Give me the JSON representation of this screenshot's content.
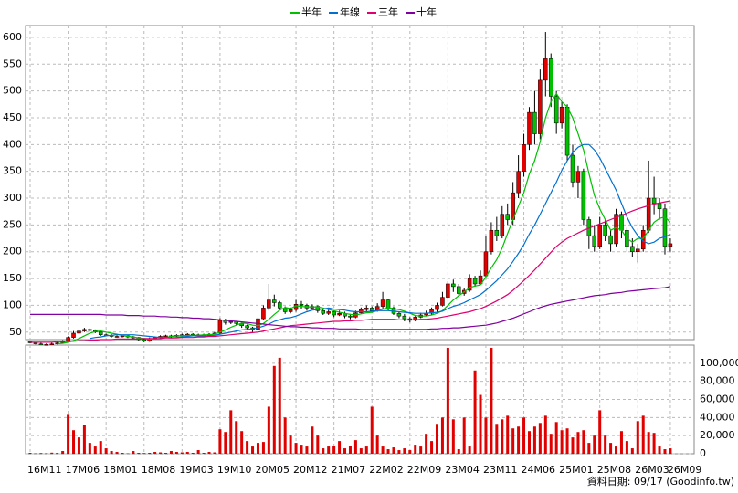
{
  "chart_data": {
    "type": "candlestick",
    "footer": "資料日期: 09/17 (Goodinfo.tw)",
    "categories": [
      "16M11",
      null,
      null,
      null,
      null,
      null,
      null,
      "17M06",
      null,
      null,
      null,
      null,
      null,
      null,
      "18M01",
      null,
      null,
      null,
      null,
      null,
      null,
      "18M08",
      null,
      null,
      null,
      null,
      null,
      null,
      "19M03",
      null,
      null,
      null,
      null,
      null,
      null,
      "19M10",
      null,
      null,
      null,
      null,
      null,
      null,
      "20M05",
      null,
      null,
      null,
      null,
      null,
      null,
      "20M12",
      null,
      null,
      null,
      null,
      null,
      null,
      "21M07",
      null,
      null,
      null,
      null,
      null,
      null,
      "22M02",
      null,
      null,
      null,
      null,
      null,
      null,
      "22M09",
      null,
      null,
      null,
      null,
      null,
      null,
      "23M04",
      null,
      null,
      null,
      null,
      null,
      null,
      "23M11",
      null,
      null,
      null,
      null,
      null,
      null,
      "24M06",
      null,
      null,
      null,
      null,
      null,
      null,
      "25M01",
      null,
      null,
      null,
      null,
      null,
      null,
      "25M08",
      null,
      null,
      null,
      null,
      null,
      null,
      "26M03",
      null,
      null,
      null,
      null,
      null,
      "26M09"
    ],
    "open": [
      32,
      30,
      28,
      27,
      27,
      28,
      30,
      33,
      40,
      48,
      52,
      55,
      53,
      50,
      45,
      44,
      42,
      42,
      43,
      41,
      40,
      36,
      34,
      38,
      40,
      42,
      43,
      42,
      44,
      45,
      46,
      44,
      45,
      44,
      46,
      48,
      72,
      68,
      70,
      66,
      62,
      58,
      55,
      75,
      95,
      110,
      105,
      95,
      88,
      92,
      102,
      100,
      95,
      98,
      90,
      85,
      88,
      82,
      85,
      80,
      78,
      86,
      92,
      95,
      90,
      98,
      110,
      95,
      85,
      80,
      75,
      72,
      78,
      82,
      85,
      92,
      100,
      115,
      140,
      135,
      122,
      128,
      150,
      140,
      155,
      200,
      240,
      230,
      270,
      260,
      310,
      350,
      400,
      460,
      420,
      520,
      560,
      490,
      440,
      470,
      380,
      330,
      350,
      260,
      230,
      210,
      250,
      230,
      215,
      270,
      240,
      210,
      200,
      205,
      240,
      300,
      290,
      280,
      210
    ],
    "high": [
      33,
      31,
      30,
      29,
      30,
      32,
      35,
      42,
      52,
      56,
      58,
      57,
      55,
      52,
      47,
      46,
      44,
      45,
      44,
      43,
      41,
      38,
      40,
      42,
      44,
      45,
      45,
      46,
      47,
      48,
      48,
      47,
      47,
      48,
      50,
      76,
      75,
      72,
      71,
      68,
      64,
      60,
      78,
      100,
      140,
      120,
      108,
      98,
      96,
      110,
      108,
      103,
      102,
      100,
      94,
      92,
      90,
      90,
      88,
      84,
      90,
      96,
      100,
      98,
      104,
      125,
      112,
      98,
      88,
      84,
      78,
      82,
      86,
      90,
      96,
      105,
      125,
      145,
      148,
      140,
      132,
      158,
      155,
      165,
      230,
      255,
      265,
      285,
      290,
      330,
      380,
      420,
      470,
      500,
      540,
      610,
      570,
      500,
      480,
      475,
      400,
      360,
      355,
      265,
      250,
      265,
      260,
      240,
      280,
      275,
      245,
      225,
      215,
      250,
      370,
      340,
      300,
      290,
      225
    ],
    "low": [
      29,
      27,
      26,
      25,
      26,
      27,
      29,
      32,
      38,
      46,
      50,
      50,
      48,
      43,
      42,
      40,
      40,
      40,
      39,
      37,
      33,
      31,
      32,
      36,
      38,
      40,
      40,
      41,
      42,
      43,
      42,
      42,
      42,
      43,
      45,
      46,
      64,
      65,
      63,
      58,
      55,
      50,
      48,
      72,
      90,
      98,
      90,
      84,
      85,
      88,
      94,
      90,
      92,
      86,
      82,
      82,
      78,
      80,
      76,
      74,
      76,
      84,
      88,
      86,
      88,
      94,
      90,
      82,
      76,
      70,
      68,
      70,
      76,
      80,
      82,
      88,
      98,
      112,
      125,
      118,
      118,
      125,
      135,
      138,
      150,
      195,
      220,
      225,
      250,
      250,
      300,
      340,
      390,
      400,
      410,
      490,
      470,
      420,
      430,
      370,
      320,
      300,
      250,
      205,
      200,
      205,
      220,
      200,
      210,
      225,
      200,
      190,
      180,
      200,
      235,
      270,
      260,
      195,
      200
    ],
    "close": [
      30,
      28,
      27,
      27,
      28,
      30,
      33,
      40,
      48,
      52,
      55,
      53,
      50,
      45,
      44,
      42,
      42,
      43,
      41,
      40,
      36,
      34,
      38,
      40,
      42,
      43,
      42,
      44,
      45,
      46,
      44,
      45,
      44,
      46,
      48,
      72,
      68,
      70,
      66,
      62,
      58,
      55,
      75,
      95,
      110,
      105,
      95,
      88,
      92,
      102,
      100,
      95,
      98,
      90,
      85,
      88,
      82,
      85,
      80,
      78,
      86,
      92,
      95,
      90,
      98,
      110,
      95,
      85,
      80,
      75,
      72,
      78,
      82,
      85,
      92,
      100,
      115,
      140,
      135,
      122,
      128,
      150,
      140,
      155,
      200,
      240,
      230,
      270,
      260,
      310,
      350,
      400,
      460,
      420,
      520,
      560,
      490,
      440,
      470,
      380,
      330,
      350,
      260,
      230,
      210,
      250,
      230,
      215,
      270,
      240,
      210,
      200,
      205,
      240,
      300,
      290,
      280,
      210,
      215
    ],
    "up_color": "#e00000",
    "down_color": "#00c000",
    "volume": [
      1000,
      500,
      800,
      600,
      1200,
      900,
      3000,
      43000,
      26000,
      18000,
      32000,
      12000,
      8000,
      14000,
      6000,
      3000,
      2000,
      1000,
      500,
      3000,
      1000,
      800,
      1000,
      2000,
      1500,
      1000,
      3000,
      2000,
      1500,
      2000,
      1000,
      4000,
      1000,
      2000,
      1500,
      27000,
      24000,
      48000,
      36000,
      25000,
      14000,
      8000,
      12000,
      13000,
      52000,
      97000,
      106000,
      40000,
      20000,
      12000,
      10000,
      8000,
      30000,
      20000,
      6000,
      8000,
      9000,
      14000,
      6000,
      9000,
      15000,
      6000,
      8000,
      52000,
      20000,
      8000,
      5000,
      7000,
      4000,
      6000,
      4000,
      10000,
      8000,
      22000,
      14000,
      33000,
      40000,
      117000,
      38000,
      5000,
      40000,
      8000,
      92000,
      65000,
      40000,
      117000,
      33000,
      38000,
      42000,
      28000,
      30000,
      40000,
      25000,
      30000,
      34000,
      42000,
      22000,
      35000,
      26000,
      28000,
      18000,
      24000,
      26000,
      12000,
      20000,
      48000,
      20000,
      12000,
      8000,
      25000,
      14000,
      6000,
      36000,
      42000,
      24000,
      23000,
      8000,
      5000,
      6000
    ],
    "volume_color": "#e00000",
    "series": [
      {
        "name": "半年",
        "color": "#00c000",
        "values": [
          null,
          null,
          null,
          null,
          null,
          28.5,
          29,
          31,
          34,
          38,
          43,
          48,
          51,
          52,
          50,
          48,
          46,
          44,
          42,
          41,
          39,
          38,
          37,
          37,
          38,
          40,
          42,
          43,
          43,
          44,
          44,
          44,
          45,
          45,
          46,
          50,
          54,
          59,
          63,
          67,
          66,
          63,
          62,
          66,
          74,
          83,
          91,
          96,
          94,
          99,
          98,
          97,
          97,
          97,
          95,
          92,
          90,
          87,
          85,
          83,
          82,
          84,
          86,
          87,
          90,
          93,
          95,
          94,
          92,
          89,
          85,
          81,
          80,
          80,
          82,
          85,
          90,
          100,
          110,
          118,
          125,
          133,
          136,
          138,
          153,
          170,
          185,
          207,
          234,
          260,
          285,
          310,
          345,
          370,
          405,
          450,
          480,
          495,
          480,
          470,
          450,
          420,
          390,
          346,
          305,
          280,
          260,
          240,
          245,
          240,
          225,
          218,
          225,
          225,
          240,
          255,
          262,
          265,
          255
        ]
      },
      {
        "name": "年線",
        "color": "#0070d0",
        "values": [
          null,
          null,
          null,
          null,
          null,
          null,
          null,
          null,
          null,
          null,
          null,
          38,
          40,
          41,
          43,
          44,
          45,
          45,
          45,
          45,
          44,
          43,
          42,
          41,
          40,
          40,
          39,
          40,
          41,
          42,
          43,
          43,
          43,
          43,
          44,
          46,
          48,
          50,
          52,
          54,
          55,
          56,
          58,
          61,
          65,
          70,
          73,
          76,
          77,
          80,
          84,
          88,
          91,
          92,
          93,
          95,
          93,
          92,
          91,
          89,
          88,
          88,
          88,
          89,
          90,
          90,
          90,
          89,
          88,
          87,
          86,
          85,
          85,
          85,
          86,
          87,
          89,
          94,
          98,
          101,
          105,
          110,
          115,
          120,
          128,
          137,
          146,
          157,
          168,
          182,
          197,
          213,
          233,
          250,
          270,
          290,
          310,
          330,
          352,
          370,
          385,
          395,
          400,
          400,
          390,
          375,
          355,
          335,
          315,
          290,
          265,
          245,
          230,
          220,
          215,
          218,
          225,
          228,
          232
        ]
      },
      {
        "name": "三年",
        "color": "#e0006f",
        "values": [
          31,
          31,
          31,
          31,
          31,
          32,
          32,
          33,
          33,
          34,
          34,
          35,
          35,
          36,
          36,
          36,
          37,
          37,
          37,
          37,
          37,
          38,
          38,
          38,
          38,
          39,
          39,
          39,
          40,
          40,
          40,
          41,
          41,
          42,
          42,
          43,
          44,
          45,
          46,
          47,
          48,
          49,
          50,
          52,
          54,
          56,
          58,
          60,
          62,
          63,
          64,
          65,
          66,
          67,
          68,
          69,
          70,
          70,
          71,
          71,
          72,
          72,
          73,
          74,
          74,
          74,
          74,
          74,
          73,
          73,
          73,
          73,
          74,
          74,
          75,
          76,
          78,
          80,
          82,
          84,
          86,
          88,
          91,
          94,
          98,
          103,
          108,
          114,
          120,
          128,
          137,
          146,
          156,
          166,
          177,
          188,
          199,
          210,
          218,
          225,
          230,
          235,
          240,
          244,
          248,
          252,
          256,
          260,
          264,
          268,
          272,
          276,
          280,
          283,
          286,
          289,
          291,
          293,
          295
        ]
      },
      {
        "name": "十年",
        "color": "#8000a0",
        "values": [
          83,
          83,
          83,
          83,
          83,
          83,
          83,
          83,
          83,
          83,
          83,
          83,
          83,
          83,
          82,
          82,
          82,
          82,
          81,
          81,
          81,
          80,
          80,
          80,
          79,
          79,
          78,
          78,
          77,
          77,
          76,
          76,
          75,
          75,
          74,
          73,
          72,
          71,
          70,
          69,
          68,
          67,
          66,
          65,
          64,
          63,
          62,
          61,
          60,
          60,
          59,
          59,
          58,
          58,
          57,
          57,
          57,
          56,
          56,
          56,
          56,
          55,
          55,
          55,
          55,
          55,
          55,
          55,
          55,
          55,
          55,
          55,
          55,
          55,
          56,
          56,
          57,
          57,
          58,
          58,
          59,
          60,
          61,
          62,
          63,
          65,
          67,
          70,
          73,
          76,
          80,
          84,
          88,
          92,
          96,
          99,
          102,
          104,
          106,
          108,
          110,
          112,
          114,
          116,
          118,
          119,
          120,
          122,
          123,
          124,
          126,
          127,
          128,
          129,
          130,
          131,
          132,
          133,
          135
        ]
      }
    ],
    "ylim": [
      36,
      622
    ],
    "yticks": [
      50,
      100,
      150,
      200,
      250,
      300,
      350,
      400,
      450,
      500,
      550,
      600
    ],
    "y2lim": [
      0,
      120000
    ],
    "y2ticks": [
      0,
      {
        "value": 20000,
        "label": "20,000"
      },
      {
        "value": 40000,
        "label": "40,000"
      },
      {
        "value": 60000,
        "label": "60,000"
      },
      {
        "value": 80000,
        "label": "80,000"
      },
      {
        "value": 100000,
        "label": "100,000"
      }
    ],
    "grid": true,
    "legend": "top"
  }
}
